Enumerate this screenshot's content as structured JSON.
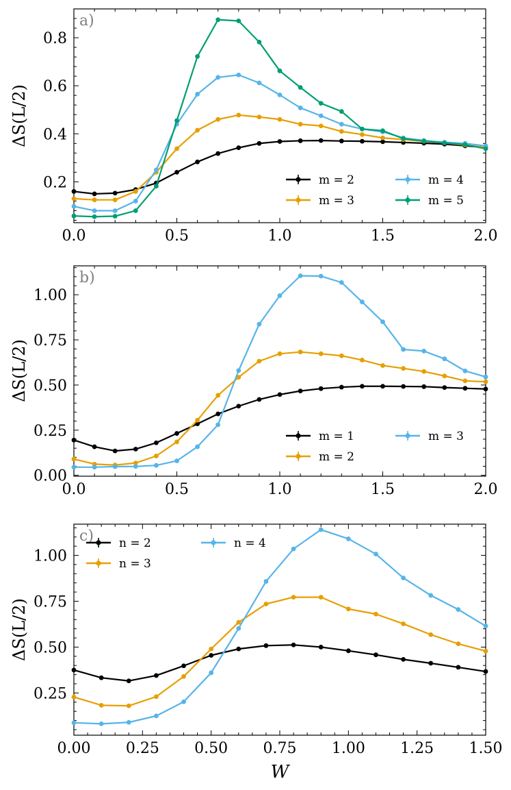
{
  "colors": {
    "black": "#000000",
    "orange": "#e69f00",
    "blue": "#56b4e9",
    "green": "#009e73"
  },
  "chart_data": [
    {
      "type": "line",
      "panel_label": "a)",
      "ylabel": "ΔS(L/2)",
      "xlabel": "",
      "xlim": [
        0,
        2.0
      ],
      "ylim": [
        0.03,
        0.92
      ],
      "xticks": [
        0,
        0.5,
        1.0,
        1.5,
        2.0
      ],
      "xtick_labels": [
        "0.0",
        "0.5",
        "1.0",
        "1.5",
        "2.0"
      ],
      "yticks": [
        0.2,
        0.4,
        0.6,
        0.8
      ],
      "ytick_labels": [
        "0.2",
        "0.4",
        "0.6",
        "0.8"
      ],
      "x": [
        0,
        0.1,
        0.2,
        0.3,
        0.4,
        0.5,
        0.6,
        0.7,
        0.8,
        0.9,
        1.0,
        1.1,
        1.2,
        1.3,
        1.4,
        1.5,
        1.6,
        1.7,
        1.8,
        1.9,
        2.0
      ],
      "legend_location": "lower-right",
      "legend_columns": 2,
      "series": [
        {
          "name": "m = 2",
          "color": "#000000",
          "values": [
            0.16,
            0.15,
            0.153,
            0.168,
            0.195,
            0.24,
            0.283,
            0.318,
            0.342,
            0.36,
            0.368,
            0.371,
            0.372,
            0.37,
            0.369,
            0.367,
            0.364,
            0.361,
            0.357,
            0.35,
            0.343
          ]
        },
        {
          "name": "m = 3",
          "color": "#e69f00",
          "values": [
            0.13,
            0.125,
            0.125,
            0.16,
            0.24,
            0.338,
            0.415,
            0.46,
            0.478,
            0.47,
            0.46,
            0.44,
            0.433,
            0.41,
            0.397,
            0.383,
            0.376,
            0.369,
            0.362,
            0.353,
            0.344
          ]
        },
        {
          "name": "m = 4",
          "color": "#56b4e9",
          "values": [
            0.098,
            0.08,
            0.08,
            0.12,
            0.25,
            0.44,
            0.565,
            0.635,
            0.645,
            0.612,
            0.562,
            0.508,
            0.475,
            0.44,
            0.42,
            0.408,
            0.383,
            0.372,
            0.365,
            0.36,
            0.35
          ]
        },
        {
          "name": "m = 5",
          "color": "#009e73",
          "values": [
            0.058,
            0.055,
            0.057,
            0.08,
            0.182,
            0.455,
            0.722,
            0.875,
            0.87,
            0.782,
            0.662,
            0.593,
            0.527,
            0.493,
            0.42,
            0.413,
            0.38,
            0.37,
            0.362,
            0.355,
            0.338
          ]
        }
      ]
    },
    {
      "type": "line",
      "panel_label": "b)",
      "ylabel": "ΔS(L/2)",
      "xlabel": "",
      "xlim": [
        0,
        2.0
      ],
      "ylim": [
        -0.005,
        1.16
      ],
      "xticks": [
        0,
        0.5,
        1.0,
        1.5,
        2.0
      ],
      "xtick_labels": [
        "0.0",
        "0.5",
        "1.0",
        "1.5",
        "2.0"
      ],
      "yticks": [
        0,
        0.25,
        0.5,
        0.75,
        1.0
      ],
      "ytick_labels": [
        "0.00",
        "0.25",
        "0.50",
        "0.75",
        "1.00"
      ],
      "x": [
        0,
        0.1,
        0.2,
        0.3,
        0.4,
        0.5,
        0.6,
        0.7,
        0.8,
        0.9,
        1.0,
        1.1,
        1.2,
        1.3,
        1.4,
        1.5,
        1.6,
        1.7,
        1.8,
        1.9,
        2.0
      ],
      "legend_location": "lower-right",
      "legend_columns": 2,
      "series": [
        {
          "name": "m = 1",
          "color": "#000000",
          "values": [
            0.195,
            0.158,
            0.135,
            0.145,
            0.18,
            0.232,
            0.285,
            0.34,
            0.383,
            0.42,
            0.447,
            0.467,
            0.48,
            0.488,
            0.493,
            0.493,
            0.492,
            0.491,
            0.486,
            0.482,
            0.478
          ]
        },
        {
          "name": "m = 2",
          "color": "#e69f00",
          "values": [
            0.09,
            0.062,
            0.057,
            0.068,
            0.107,
            0.185,
            0.305,
            0.443,
            0.543,
            0.632,
            0.673,
            0.683,
            0.673,
            0.662,
            0.638,
            0.608,
            0.592,
            0.575,
            0.55,
            0.523,
            0.518
          ]
        },
        {
          "name": "m = 3",
          "color": "#56b4e9",
          "values": [
            0.045,
            0.045,
            0.048,
            0.049,
            0.055,
            0.08,
            0.158,
            0.28,
            0.58,
            0.837,
            0.995,
            1.105,
            1.103,
            1.068,
            0.96,
            0.85,
            0.697,
            0.688,
            0.645,
            0.578,
            0.545
          ]
        }
      ]
    },
    {
      "type": "line",
      "panel_label": "c)",
      "ylabel": "ΔS(L/2)",
      "xlabel": "W",
      "xlim": [
        0,
        1.5
      ],
      "ylim": [
        0.02,
        1.17
      ],
      "xticks": [
        0,
        0.25,
        0.5,
        0.75,
        1.0,
        1.25,
        1.5
      ],
      "xtick_labels": [
        "0.00",
        "0.25",
        "0.50",
        "0.75",
        "1.00",
        "1.25",
        "1.50"
      ],
      "yticks": [
        0.25,
        0.5,
        0.75,
        1.0
      ],
      "ytick_labels": [
        "0.25",
        "0.50",
        "0.75",
        "1.00"
      ],
      "x": [
        0,
        0.1,
        0.2,
        0.3,
        0.4,
        0.5,
        0.6,
        0.7,
        0.8,
        0.9,
        1.0,
        1.1,
        1.2,
        1.3,
        1.4,
        1.5
      ],
      "legend_location": "upper-left",
      "legend_columns": 2,
      "series": [
        {
          "name": "n = 2",
          "color": "#000000",
          "values": [
            0.375,
            0.333,
            0.316,
            0.345,
            0.398,
            0.455,
            0.49,
            0.508,
            0.512,
            0.5,
            0.48,
            0.458,
            0.433,
            0.412,
            0.39,
            0.367
          ]
        },
        {
          "name": "n = 3",
          "color": "#e69f00",
          "values": [
            0.228,
            0.183,
            0.18,
            0.23,
            0.34,
            0.49,
            0.635,
            0.735,
            0.772,
            0.772,
            0.708,
            0.68,
            0.627,
            0.568,
            0.518,
            0.478
          ]
        },
        {
          "name": "n = 4",
          "color": "#56b4e9",
          "values": [
            0.088,
            0.082,
            0.09,
            0.125,
            0.202,
            0.36,
            0.602,
            0.858,
            1.035,
            1.14,
            1.09,
            1.007,
            0.877,
            0.782,
            0.705,
            0.615
          ]
        }
      ]
    }
  ]
}
